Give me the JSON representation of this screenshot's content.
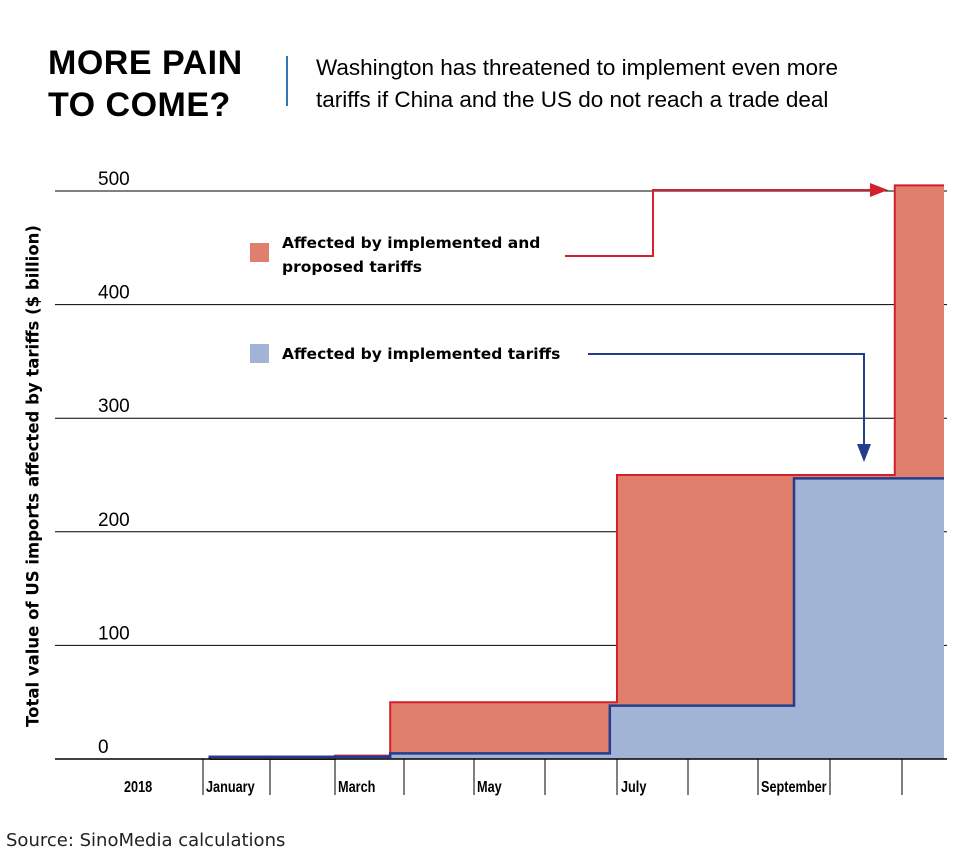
{
  "header": {
    "title_line1": "MORE PAIN",
    "title_line2": "TO COME?",
    "subtitle_line1": "Washington has threatened to implement even more",
    "subtitle_line2": "tariffs if China and the US do not reach a trade deal"
  },
  "footer": {
    "source": "Source: SinoMedia calculations"
  },
  "colors": {
    "proposed_fill": "#e0806c",
    "proposed_line": "#d3202c",
    "implemented_fill": "#a1b4d6",
    "implemented_line": "#253c8c"
  },
  "chart_data": {
    "type": "area",
    "step": true,
    "ylabel": "Total value of US imports affected by tariffs ($ billion)",
    "ylim": [
      0,
      500
    ],
    "yticks": [
      "0",
      "100",
      "200",
      "300",
      "400",
      "500"
    ],
    "xticks": [
      "2018",
      "January",
      "March",
      "May",
      "July",
      "September"
    ],
    "grid": true,
    "legend": [
      {
        "series": "Affected by implemented and proposed tariffs",
        "text_line1": "Affected by implemented and",
        "text_line2": "proposed tariffs"
      },
      {
        "series": "Affected by implemented tariffs",
        "text_line1": "Affected by implemented tariffs",
        "text_line2": ""
      }
    ],
    "series": [
      {
        "name": "Affected by implemented and proposed tariffs",
        "points": [
          {
            "month": 1.1,
            "value": 0
          },
          {
            "month": 3.0,
            "value": 3
          },
          {
            "month": 3.8,
            "value": 50
          },
          {
            "month": 7.0,
            "value": 250
          },
          {
            "month": 10.9,
            "value": 505
          }
        ],
        "end_month": 11.6
      },
      {
        "name": "Affected by implemented tariffs",
        "points": [
          {
            "month": 1.1,
            "value": 2
          },
          {
            "month": 3.8,
            "value": 5
          },
          {
            "month": 6.9,
            "value": 47
          },
          {
            "month": 9.5,
            "value": 247
          }
        ],
        "end_month": 11.6
      }
    ]
  }
}
